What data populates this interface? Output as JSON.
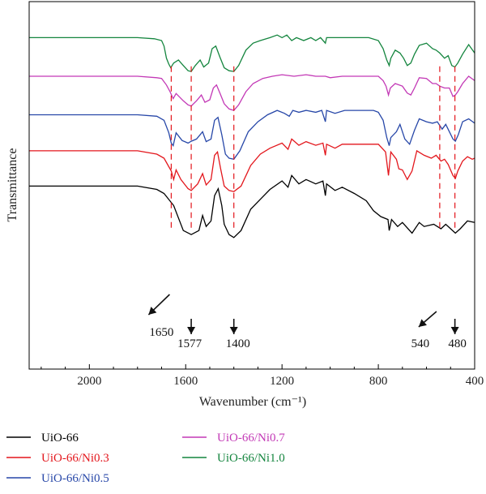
{
  "chart_data": {
    "type": "line",
    "xlabel": "Wavenumber (cm⁻¹)",
    "ylabel": "Transmittance",
    "xlim": [
      2250,
      400
    ],
    "x_reversed": true,
    "x_ticks": [
      2000,
      1600,
      1200,
      800,
      400
    ],
    "y_ticks_shown": false,
    "grid": false,
    "legend_position": "bottom-left",
    "series": [
      {
        "name": "UiO-66",
        "color": "#000000",
        "points": [
          [
            2250,
            49.8
          ],
          [
            1800,
            49.8
          ],
          [
            1720,
            48.9
          ],
          [
            1690,
            47.8
          ],
          [
            1650,
            44.5
          ],
          [
            1610,
            37.7
          ],
          [
            1577,
            36.6
          ],
          [
            1545,
            37.7
          ],
          [
            1530,
            41.8
          ],
          [
            1515,
            38.8
          ],
          [
            1495,
            40.3
          ],
          [
            1480,
            47.2
          ],
          [
            1465,
            49.1
          ],
          [
            1450,
            44.5
          ],
          [
            1440,
            39.4
          ],
          [
            1420,
            36.6
          ],
          [
            1400,
            35.8
          ],
          [
            1370,
            37.7
          ],
          [
            1330,
            43.5
          ],
          [
            1290,
            46.2
          ],
          [
            1250,
            48.9
          ],
          [
            1200,
            51.2
          ],
          [
            1175,
            49.5
          ],
          [
            1160,
            52.7
          ],
          [
            1130,
            50.4
          ],
          [
            1100,
            51.6
          ],
          [
            1060,
            50.4
          ],
          [
            1030,
            51.2
          ],
          [
            1020,
            47.2
          ],
          [
            1015,
            50.4
          ],
          [
            980,
            48.6
          ],
          [
            950,
            49.5
          ],
          [
            900,
            47.8
          ],
          [
            850,
            45.8
          ],
          [
            820,
            43.1
          ],
          [
            790,
            41.5
          ],
          [
            760,
            40.7
          ],
          [
            755,
            37.7
          ],
          [
            745,
            40.7
          ],
          [
            720,
            38.8
          ],
          [
            700,
            39.9
          ],
          [
            660,
            37.0
          ],
          [
            630,
            39.9
          ],
          [
            610,
            38.8
          ],
          [
            570,
            39.4
          ],
          [
            540,
            38.2
          ],
          [
            520,
            39.4
          ],
          [
            500,
            38.2
          ],
          [
            480,
            37.0
          ],
          [
            460,
            38.2
          ],
          [
            430,
            40.3
          ],
          [
            400,
            39.9
          ]
        ]
      },
      {
        "name": "UiO-66/Ni0.3",
        "color": "#e3161c",
        "points": [
          [
            2250,
            59.4
          ],
          [
            1800,
            59.4
          ],
          [
            1720,
            58.5
          ],
          [
            1690,
            57.4
          ],
          [
            1660,
            53.9
          ],
          [
            1650,
            51.6
          ],
          [
            1640,
            54.2
          ],
          [
            1620,
            51.6
          ],
          [
            1590,
            49.1
          ],
          [
            1577,
            48.6
          ],
          [
            1550,
            50.4
          ],
          [
            1530,
            53.2
          ],
          [
            1515,
            50.1
          ],
          [
            1495,
            51.6
          ],
          [
            1480,
            58.2
          ],
          [
            1468,
            59.1
          ],
          [
            1455,
            54.5
          ],
          [
            1440,
            49.8
          ],
          [
            1420,
            48.6
          ],
          [
            1400,
            48.3
          ],
          [
            1370,
            49.8
          ],
          [
            1330,
            55.4
          ],
          [
            1290,
            58.5
          ],
          [
            1250,
            60.1
          ],
          [
            1200,
            61.5
          ],
          [
            1175,
            59.8
          ],
          [
            1160,
            62.6
          ],
          [
            1130,
            60.9
          ],
          [
            1100,
            61.9
          ],
          [
            1060,
            60.9
          ],
          [
            1030,
            61.5
          ],
          [
            1020,
            58.2
          ],
          [
            1015,
            61.2
          ],
          [
            980,
            60.1
          ],
          [
            950,
            61.2
          ],
          [
            900,
            61.2
          ],
          [
            850,
            61.2
          ],
          [
            800,
            61.2
          ],
          [
            770,
            59.1
          ],
          [
            758,
            52.7
          ],
          [
            748,
            59.1
          ],
          [
            725,
            57.1
          ],
          [
            715,
            54.5
          ],
          [
            700,
            54.2
          ],
          [
            680,
            51.6
          ],
          [
            660,
            53.9
          ],
          [
            640,
            59.4
          ],
          [
            610,
            58.2
          ],
          [
            580,
            57.4
          ],
          [
            560,
            58.2
          ],
          [
            540,
            56.6
          ],
          [
            525,
            57.1
          ],
          [
            510,
            55.7
          ],
          [
            490,
            52.7
          ],
          [
            480,
            51.9
          ],
          [
            470,
            53.9
          ],
          [
            450,
            56.6
          ],
          [
            430,
            57.8
          ],
          [
            410,
            57.1
          ],
          [
            400,
            57.4
          ]
        ]
      },
      {
        "name": "UiO-66/Ni0.5",
        "color": "#2747a8",
        "points": [
          [
            2250,
            69.2
          ],
          [
            1800,
            69.2
          ],
          [
            1720,
            68.8
          ],
          [
            1690,
            67.7
          ],
          [
            1670,
            64.3
          ],
          [
            1660,
            61.5
          ],
          [
            1652,
            60.8
          ],
          [
            1640,
            64.3
          ],
          [
            1615,
            62.2
          ],
          [
            1590,
            61.5
          ],
          [
            1577,
            62.0
          ],
          [
            1555,
            62.6
          ],
          [
            1530,
            64.6
          ],
          [
            1515,
            61.9
          ],
          [
            1495,
            62.6
          ],
          [
            1480,
            67.7
          ],
          [
            1466,
            68.5
          ],
          [
            1450,
            63.8
          ],
          [
            1435,
            58.5
          ],
          [
            1420,
            57.4
          ],
          [
            1400,
            57.1
          ],
          [
            1375,
            59.4
          ],
          [
            1340,
            64.6
          ],
          [
            1300,
            67.3
          ],
          [
            1260,
            69.2
          ],
          [
            1220,
            70.4
          ],
          [
            1190,
            69.6
          ],
          [
            1170,
            68.8
          ],
          [
            1155,
            70.4
          ],
          [
            1130,
            69.9
          ],
          [
            1100,
            70.4
          ],
          [
            1060,
            69.9
          ],
          [
            1035,
            70.4
          ],
          [
            1020,
            67.3
          ],
          [
            1015,
            70.4
          ],
          [
            980,
            69.6
          ],
          [
            940,
            70.4
          ],
          [
            880,
            70.4
          ],
          [
            820,
            70.4
          ],
          [
            800,
            69.9
          ],
          [
            780,
            67.7
          ],
          [
            765,
            63.0
          ],
          [
            755,
            60.8
          ],
          [
            748,
            63.0
          ],
          [
            725,
            64.6
          ],
          [
            710,
            66.6
          ],
          [
            690,
            62.6
          ],
          [
            670,
            61.2
          ],
          [
            650,
            65.0
          ],
          [
            630,
            68.1
          ],
          [
            600,
            67.3
          ],
          [
            575,
            66.9
          ],
          [
            555,
            67.3
          ],
          [
            535,
            65.3
          ],
          [
            520,
            66.6
          ],
          [
            505,
            64.6
          ],
          [
            490,
            62.6
          ],
          [
            480,
            62.0
          ],
          [
            468,
            63.8
          ],
          [
            450,
            67.3
          ],
          [
            425,
            68.1
          ],
          [
            400,
            66.9
          ]
        ]
      },
      {
        "name": "UiO-66/Ni0.7",
        "color": "#c339b6",
        "points": [
          [
            2250,
            79.7
          ],
          [
            1800,
            79.7
          ],
          [
            1720,
            79.3
          ],
          [
            1700,
            79.1
          ],
          [
            1680,
            77.3
          ],
          [
            1665,
            75.5
          ],
          [
            1652,
            73.6
          ],
          [
            1640,
            75.0
          ],
          [
            1610,
            73.0
          ],
          [
            1590,
            71.9
          ],
          [
            1577,
            71.6
          ],
          [
            1555,
            73.0
          ],
          [
            1535,
            74.6
          ],
          [
            1520,
            72.6
          ],
          [
            1500,
            73.3
          ],
          [
            1485,
            76.5
          ],
          [
            1472,
            77.3
          ],
          [
            1458,
            75.1
          ],
          [
            1440,
            72.2
          ],
          [
            1420,
            70.8
          ],
          [
            1400,
            70.4
          ],
          [
            1380,
            71.9
          ],
          [
            1350,
            75.5
          ],
          [
            1320,
            77.7
          ],
          [
            1280,
            79.1
          ],
          [
            1240,
            79.7
          ],
          [
            1200,
            80.1
          ],
          [
            1150,
            79.7
          ],
          [
            1100,
            80.1
          ],
          [
            1060,
            79.7
          ],
          [
            1020,
            79.7
          ],
          [
            1000,
            79.3
          ],
          [
            950,
            79.7
          ],
          [
            900,
            79.7
          ],
          [
            850,
            79.7
          ],
          [
            800,
            79.7
          ],
          [
            780,
            78.5
          ],
          [
            768,
            77.0
          ],
          [
            758,
            74.6
          ],
          [
            750,
            76.5
          ],
          [
            730,
            77.7
          ],
          [
            700,
            77.0
          ],
          [
            680,
            75.1
          ],
          [
            665,
            74.6
          ],
          [
            650,
            76.5
          ],
          [
            630,
            79.3
          ],
          [
            600,
            79.1
          ],
          [
            575,
            77.7
          ],
          [
            560,
            77.7
          ],
          [
            545,
            77.0
          ],
          [
            525,
            76.5
          ],
          [
            505,
            76.5
          ],
          [
            490,
            74.2
          ],
          [
            480,
            74.6
          ],
          [
            470,
            75.5
          ],
          [
            450,
            77.7
          ],
          [
            425,
            79.7
          ],
          [
            400,
            78.5
          ]
        ]
      },
      {
        "name": "UiO-66/Ni1.0",
        "color": "#14853e",
        "points": [
          [
            2250,
            90.2
          ],
          [
            1800,
            90.2
          ],
          [
            1730,
            89.9
          ],
          [
            1700,
            89.4
          ],
          [
            1690,
            87.9
          ],
          [
            1680,
            84.6
          ],
          [
            1670,
            83.0
          ],
          [
            1662,
            82.0
          ],
          [
            1650,
            83.3
          ],
          [
            1630,
            84.1
          ],
          [
            1610,
            82.6
          ],
          [
            1590,
            81.2
          ],
          [
            1577,
            81.0
          ],
          [
            1560,
            82.6
          ],
          [
            1540,
            84.1
          ],
          [
            1525,
            82.2
          ],
          [
            1505,
            83.3
          ],
          [
            1490,
            87.2
          ],
          [
            1475,
            87.9
          ],
          [
            1458,
            84.9
          ],
          [
            1440,
            82.0
          ],
          [
            1420,
            81.2
          ],
          [
            1400,
            81.0
          ],
          [
            1380,
            82.6
          ],
          [
            1350,
            86.8
          ],
          [
            1320,
            88.7
          ],
          [
            1290,
            89.4
          ],
          [
            1250,
            90.2
          ],
          [
            1220,
            90.9
          ],
          [
            1200,
            90.2
          ],
          [
            1180,
            90.9
          ],
          [
            1160,
            89.4
          ],
          [
            1140,
            90.2
          ],
          [
            1110,
            89.4
          ],
          [
            1080,
            90.2
          ],
          [
            1060,
            89.4
          ],
          [
            1040,
            90.2
          ],
          [
            1020,
            88.7
          ],
          [
            1015,
            90.2
          ],
          [
            980,
            90.2
          ],
          [
            920,
            90.2
          ],
          [
            880,
            90.2
          ],
          [
            840,
            90.2
          ],
          [
            800,
            89.4
          ],
          [
            780,
            87.2
          ],
          [
            765,
            84.1
          ],
          [
            755,
            82.6
          ],
          [
            748,
            84.6
          ],
          [
            730,
            86.8
          ],
          [
            710,
            86.0
          ],
          [
            695,
            84.6
          ],
          [
            680,
            82.6
          ],
          [
            665,
            83.3
          ],
          [
            650,
            85.7
          ],
          [
            630,
            88.1
          ],
          [
            600,
            88.7
          ],
          [
            575,
            87.2
          ],
          [
            560,
            86.8
          ],
          [
            545,
            86.0
          ],
          [
            525,
            84.6
          ],
          [
            510,
            85.3
          ],
          [
            495,
            82.6
          ],
          [
            482,
            82.2
          ],
          [
            470,
            83.3
          ],
          [
            450,
            85.7
          ],
          [
            425,
            88.3
          ],
          [
            400,
            86.0
          ]
        ]
      }
    ],
    "guide_lines_x": [
      1660,
      1577,
      1400,
      545,
      482
    ],
    "annotations": [
      {
        "text": "1650",
        "x": 1660
      },
      {
        "text": "1577",
        "x": 1577
      },
      {
        "text": "1400",
        "x": 1400
      },
      {
        "text": "540",
        "x": 545
      },
      {
        "text": "480",
        "x": 482
      }
    ]
  }
}
